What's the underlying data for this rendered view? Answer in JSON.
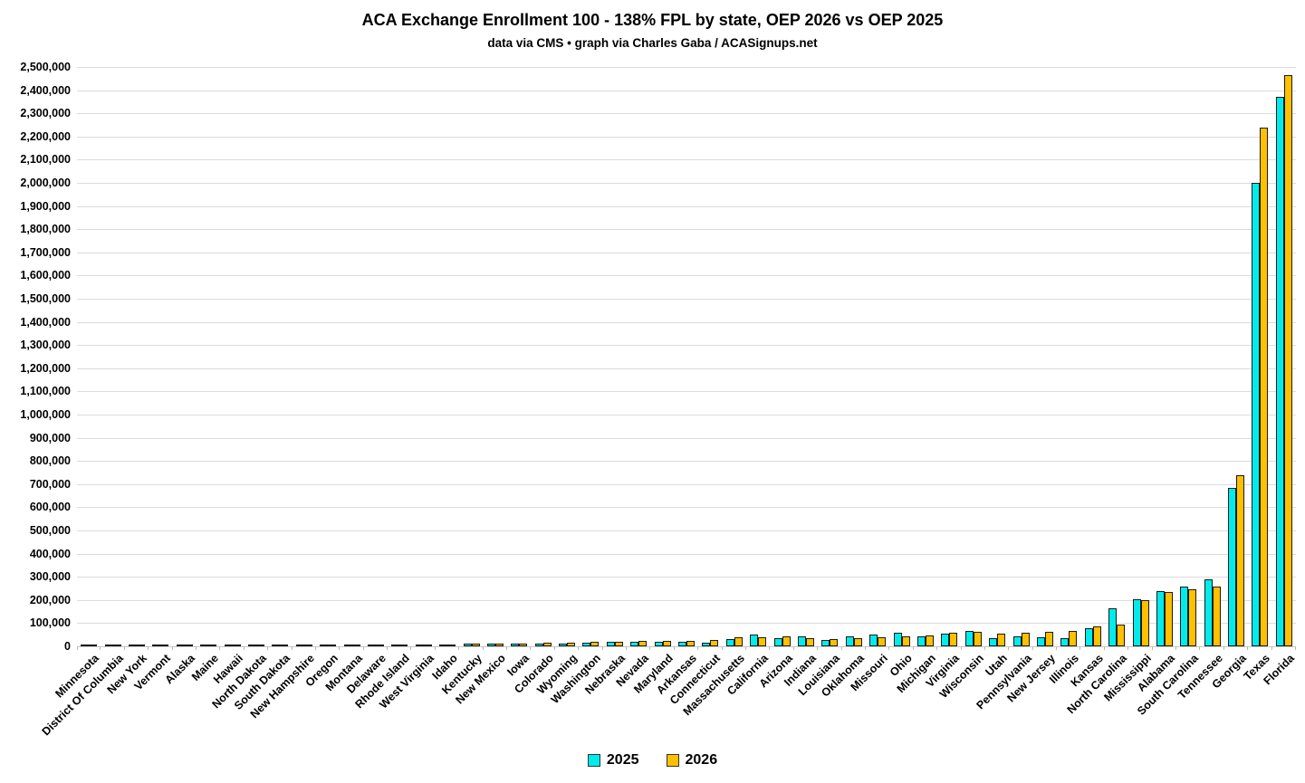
{
  "title": "ACA Exchange Enrollment 100 - 138% FPL by state, OEP 2026 vs OEP 2025",
  "subtitle": "data via CMS • graph via Charles Gaba / ACASignups.net",
  "legend": {
    "items": [
      {
        "label": "2025",
        "color": "#00ecec"
      },
      {
        "label": "2026",
        "color": "#ffc000"
      }
    ]
  },
  "colors": {
    "series_2025": "#00ecec",
    "series_2026": "#ffc000",
    "bar_outline": "#1a1a1a",
    "gridline": "#dcdcdc"
  },
  "chart_data": {
    "type": "bar",
    "title": "ACA Exchange Enrollment 100 - 138% FPL by state, OEP 2026 vs OEP 2025",
    "subtitle": "data via CMS • graph via Charles Gaba / ACASignups.net",
    "xlabel": "",
    "ylabel": "",
    "ylim": [
      0,
      2500000
    ],
    "y_tick_step": 100000,
    "grid": true,
    "legend_position": "bottom",
    "y_tick_labels": [
      "0",
      "100,000",
      "200,000",
      "300,000",
      "400,000",
      "500,000",
      "600,000",
      "700,000",
      "800,000",
      "900,000",
      "1,000,000",
      "1,100,000",
      "1,200,000",
      "1,300,000",
      "1,400,000",
      "1,500,000",
      "1,600,000",
      "1,700,000",
      "1,800,000",
      "1,900,000",
      "2,000,000",
      "2,100,000",
      "2,200,000",
      "2,300,000",
      "2,400,000",
      "2,500,000"
    ],
    "categories": [
      "Minnesota",
      "District Of Columbia",
      "New York",
      "Vermont",
      "Alaska",
      "Maine",
      "Hawaii",
      "North Dakota",
      "South Dakota",
      "New Hampshire",
      "Oregon",
      "Montana",
      "Delaware",
      "Rhode Island",
      "West Virginia",
      "Idaho",
      "Kentucky",
      "New Mexico",
      "Iowa",
      "Colorado",
      "Wyoming",
      "Washington",
      "Nebraska",
      "Nevada",
      "Maryland",
      "Arkansas",
      "Connecticut",
      "Massachusetts",
      "California",
      "Arizona",
      "Indiana",
      "Louisiana",
      "Oklahoma",
      "Missouri",
      "Ohio",
      "Michigan",
      "Virginia",
      "Wisconsin",
      "Utah",
      "Pennsylvania",
      "New Jersey",
      "Illinois",
      "Kansas",
      "North Carolina",
      "Mississippi",
      "Alabama",
      "South Carolina",
      "Tennessee",
      "Georgia",
      "Texas",
      "Florida"
    ],
    "series": [
      {
        "name": "2025",
        "color": "#00ecec",
        "values": [
          300,
          400,
          600,
          700,
          900,
          1100,
          1300,
          1600,
          1900,
          2100,
          2400,
          2800,
          8000,
          5000,
          8000,
          8500,
          10000,
          12000,
          11000,
          12000,
          13000,
          16000,
          18000,
          19000,
          20000,
          21000,
          16000,
          33000,
          52000,
          36000,
          42000,
          29000,
          43000,
          49000,
          60000,
          42000,
          55000,
          65000,
          36000,
          42000,
          39000,
          35000,
          80000,
          163000,
          205000,
          240000,
          256000,
          289000,
          683000,
          2000000,
          2370000
        ]
      },
      {
        "name": "2026",
        "color": "#ffc000",
        "values": [
          400,
          500,
          700,
          900,
          1100,
          1400,
          1600,
          2000,
          2300,
          2600,
          2900,
          3300,
          5000,
          6000,
          8500,
          9000,
          12000,
          13000,
          13000,
          14000,
          16000,
          21000,
          21000,
          22000,
          23000,
          24000,
          27000,
          38000,
          40000,
          42000,
          37000,
          33000,
          35000,
          39000,
          44000,
          47000,
          58000,
          61000,
          53000,
          58000,
          64000,
          65000,
          87000,
          93000,
          200000,
          235000,
          246000,
          257000,
          738000,
          2240000,
          2463000
        ]
      }
    ]
  }
}
